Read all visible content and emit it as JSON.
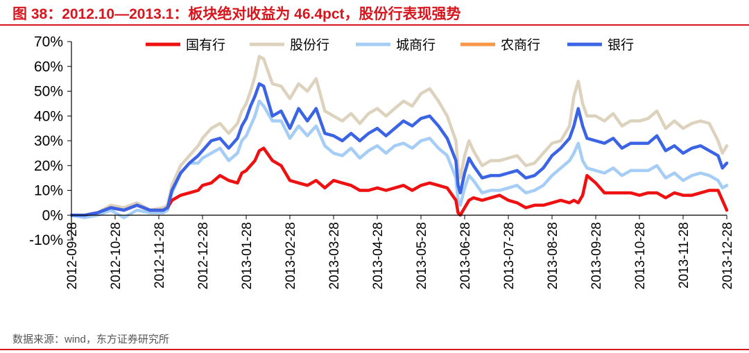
{
  "figure_title": "图 38：2012.10—2013.1：板块绝对收益为 46.4pct，股份行表现强势",
  "source": "数据来源：wind，东方证券研究所",
  "chart_data": {
    "type": "line",
    "title": "2012.10—2013.1：板块绝对收益为 46.4pct，股份行表现强势",
    "xlabel": "",
    "ylabel": "",
    "ylim": [
      -10,
      70
    ],
    "yticks": [
      -10,
      0,
      10,
      20,
      30,
      40,
      50,
      60,
      70
    ],
    "ytick_labels": [
      "-10%",
      "0%",
      "10%",
      "20%",
      "30%",
      "40%",
      "50%",
      "60%",
      "70%"
    ],
    "xlim": [
      0,
      15
    ],
    "x_tick_labels": [
      "2012-09-28",
      "2012-10-28",
      "2012-11-28",
      "2012-12-28",
      "2013-01-28",
      "2013-02-28",
      "2013-03-28",
      "2013-04-28",
      "2013-05-28",
      "2013-06-28",
      "2013-07-28",
      "2013-08-28",
      "2013-09-28",
      "2013-10-28",
      "2013-11-28",
      "2013-12-28"
    ],
    "legend_position": "top",
    "grid": false,
    "series": [
      {
        "name": "国有行",
        "color": "#ee1111",
        "x": [
          0,
          0.3,
          0.6,
          0.9,
          1.2,
          1.5,
          1.8,
          2.1,
          2.2,
          2.3,
          2.5,
          2.7,
          2.9,
          3.0,
          3.2,
          3.4,
          3.6,
          3.8,
          3.9,
          4.0,
          4.1,
          4.2,
          4.3,
          4.4,
          4.6,
          4.8,
          5.0,
          5.2,
          5.4,
          5.6,
          5.8,
          6.0,
          6.2,
          6.4,
          6.6,
          6.8,
          7.0,
          7.2,
          7.4,
          7.6,
          7.8,
          8.0,
          8.2,
          8.4,
          8.6,
          8.8,
          8.85,
          8.9,
          9.0,
          9.1,
          9.2,
          9.4,
          9.6,
          9.8,
          10.0,
          10.2,
          10.4,
          10.6,
          10.8,
          11.0,
          11.2,
          11.4,
          11.5,
          11.6,
          11.7,
          11.8,
          12.0,
          12.2,
          12.4,
          12.6,
          12.8,
          13.0,
          13.2,
          13.4,
          13.6,
          13.8,
          14.0,
          14.2,
          14.4,
          14.6,
          14.8,
          14.9,
          15.0
        ],
        "values": [
          0,
          0,
          1,
          3,
          2,
          4,
          2,
          2,
          3,
          6,
          8,
          9,
          10,
          12,
          13,
          16,
          14,
          13,
          17,
          18,
          20,
          22,
          26,
          27,
          22,
          20,
          14,
          13,
          12,
          14,
          11,
          14,
          13,
          12,
          10,
          10,
          11,
          10,
          11,
          12,
          10,
          12,
          13,
          12,
          11,
          6,
          1,
          0,
          3,
          6,
          7,
          6,
          7,
          8,
          6,
          5,
          3,
          4,
          4,
          5,
          6,
          5,
          6,
          5,
          8,
          16,
          13,
          9,
          9,
          9,
          9,
          8,
          9,
          9,
          7,
          9,
          8,
          8,
          9,
          10,
          10,
          6,
          2
        ]
      },
      {
        "name": "股份行",
        "color": "#ddd2bd",
        "x": [
          0,
          0.3,
          0.6,
          0.9,
          1.2,
          1.5,
          1.8,
          2.1,
          2.2,
          2.3,
          2.5,
          2.7,
          2.9,
          3.0,
          3.2,
          3.4,
          3.6,
          3.8,
          3.9,
          4.0,
          4.1,
          4.2,
          4.3,
          4.4,
          4.6,
          4.8,
          5.0,
          5.2,
          5.4,
          5.6,
          5.8,
          6.0,
          6.2,
          6.4,
          6.6,
          6.8,
          7.0,
          7.2,
          7.4,
          7.6,
          7.8,
          8.0,
          8.2,
          8.4,
          8.6,
          8.8,
          8.85,
          8.9,
          9.0,
          9.1,
          9.2,
          9.4,
          9.6,
          9.8,
          10.0,
          10.2,
          10.4,
          10.6,
          10.8,
          11.0,
          11.2,
          11.4,
          11.5,
          11.6,
          11.7,
          11.8,
          12.0,
          12.2,
          12.4,
          12.6,
          12.8,
          13.0,
          13.2,
          13.4,
          13.6,
          13.8,
          14.0,
          14.2,
          14.4,
          14.6,
          14.8,
          14.9,
          15.0
        ],
        "values": [
          0,
          0,
          1,
          4,
          3,
          5,
          2,
          3,
          4,
          12,
          20,
          24,
          28,
          31,
          35,
          37,
          33,
          37,
          42,
          45,
          50,
          56,
          64,
          63,
          53,
          52,
          47,
          53,
          50,
          55,
          42,
          40,
          38,
          41,
          37,
          41,
          43,
          40,
          43,
          46,
          44,
          49,
          51,
          46,
          40,
          30,
          19,
          15,
          24,
          30,
          26,
          20,
          22,
          22,
          23,
          24,
          20,
          21,
          25,
          29,
          30,
          36,
          48,
          54,
          45,
          40,
          40,
          38,
          41,
          36,
          38,
          38,
          39,
          42,
          35,
          38,
          35,
          37,
          38,
          37,
          30,
          25,
          28
        ]
      },
      {
        "name": "城商行",
        "color": "#a5cdf5",
        "x": [
          0,
          0.3,
          0.6,
          0.9,
          1.2,
          1.5,
          1.8,
          2.1,
          2.2,
          2.3,
          2.5,
          2.7,
          2.9,
          3.0,
          3.2,
          3.4,
          3.6,
          3.8,
          3.9,
          4.0,
          4.1,
          4.2,
          4.3,
          4.4,
          4.6,
          4.8,
          5.0,
          5.2,
          5.4,
          5.6,
          5.8,
          6.0,
          6.2,
          6.4,
          6.6,
          6.8,
          7.0,
          7.2,
          7.4,
          7.6,
          7.8,
          8.0,
          8.2,
          8.4,
          8.6,
          8.8,
          8.85,
          8.9,
          9.0,
          9.1,
          9.2,
          9.4,
          9.6,
          9.8,
          10.0,
          10.2,
          10.4,
          10.6,
          10.8,
          11.0,
          11.2,
          11.4,
          11.5,
          11.6,
          11.7,
          11.8,
          12.0,
          12.2,
          12.4,
          12.6,
          12.8,
          13.0,
          13.2,
          13.4,
          13.6,
          13.8,
          14.0,
          14.2,
          14.4,
          14.6,
          14.8,
          14.9,
          15.0
        ],
        "values": [
          0,
          -1,
          0,
          2,
          -1,
          2,
          1,
          1,
          2,
          9,
          17,
          21,
          21,
          23,
          25,
          27,
          22,
          25,
          30,
          32,
          36,
          40,
          46,
          44,
          38,
          38,
          31,
          36,
          32,
          36,
          28,
          25,
          24,
          27,
          23,
          26,
          28,
          25,
          28,
          29,
          27,
          30,
          31,
          27,
          24,
          15,
          6,
          4,
          11,
          16,
          14,
          9,
          10,
          10,
          11,
          12,
          9,
          10,
          12,
          16,
          19,
          22,
          25,
          29,
          22,
          19,
          18,
          17,
          19,
          16,
          18,
          18,
          18,
          20,
          15,
          17,
          14,
          16,
          17,
          16,
          14,
          11,
          12
        ]
      },
      {
        "name": "农商行",
        "color": "#f79646",
        "x": [],
        "values": []
      },
      {
        "name": "银行",
        "color": "#3b64e4",
        "x": [
          0,
          0.3,
          0.6,
          0.9,
          1.2,
          1.5,
          1.8,
          2.1,
          2.2,
          2.3,
          2.5,
          2.7,
          2.9,
          3.0,
          3.2,
          3.4,
          3.6,
          3.8,
          3.9,
          4.0,
          4.1,
          4.2,
          4.3,
          4.4,
          4.6,
          4.8,
          5.0,
          5.2,
          5.4,
          5.6,
          5.8,
          6.0,
          6.2,
          6.4,
          6.6,
          6.8,
          7.0,
          7.2,
          7.4,
          7.6,
          7.8,
          8.0,
          8.2,
          8.4,
          8.6,
          8.8,
          8.85,
          8.9,
          9.0,
          9.1,
          9.2,
          9.4,
          9.6,
          9.8,
          10.0,
          10.2,
          10.4,
          10.6,
          10.8,
          11.0,
          11.2,
          11.4,
          11.5,
          11.6,
          11.7,
          11.8,
          12.0,
          12.2,
          12.4,
          12.6,
          12.8,
          13.0,
          13.2,
          13.4,
          13.6,
          13.8,
          14.0,
          14.2,
          14.4,
          14.6,
          14.8,
          14.9,
          15.0
        ],
        "values": [
          0,
          0,
          1,
          3,
          2,
          4,
          2,
          2,
          3,
          10,
          17,
          21,
          24,
          26,
          30,
          31,
          27,
          31,
          36,
          39,
          44,
          48,
          53,
          52,
          40,
          42,
          35,
          43,
          38,
          43,
          33,
          32,
          30,
          33,
          30,
          33,
          35,
          32,
          35,
          38,
          36,
          39,
          40,
          36,
          31,
          22,
          12,
          9,
          17,
          23,
          20,
          15,
          16,
          16,
          17,
          18,
          15,
          16,
          19,
          24,
          27,
          31,
          36,
          43,
          36,
          31,
          30,
          29,
          31,
          27,
          29,
          29,
          29,
          32,
          26,
          28,
          25,
          27,
          28,
          26,
          24,
          19,
          21
        ]
      }
    ]
  }
}
